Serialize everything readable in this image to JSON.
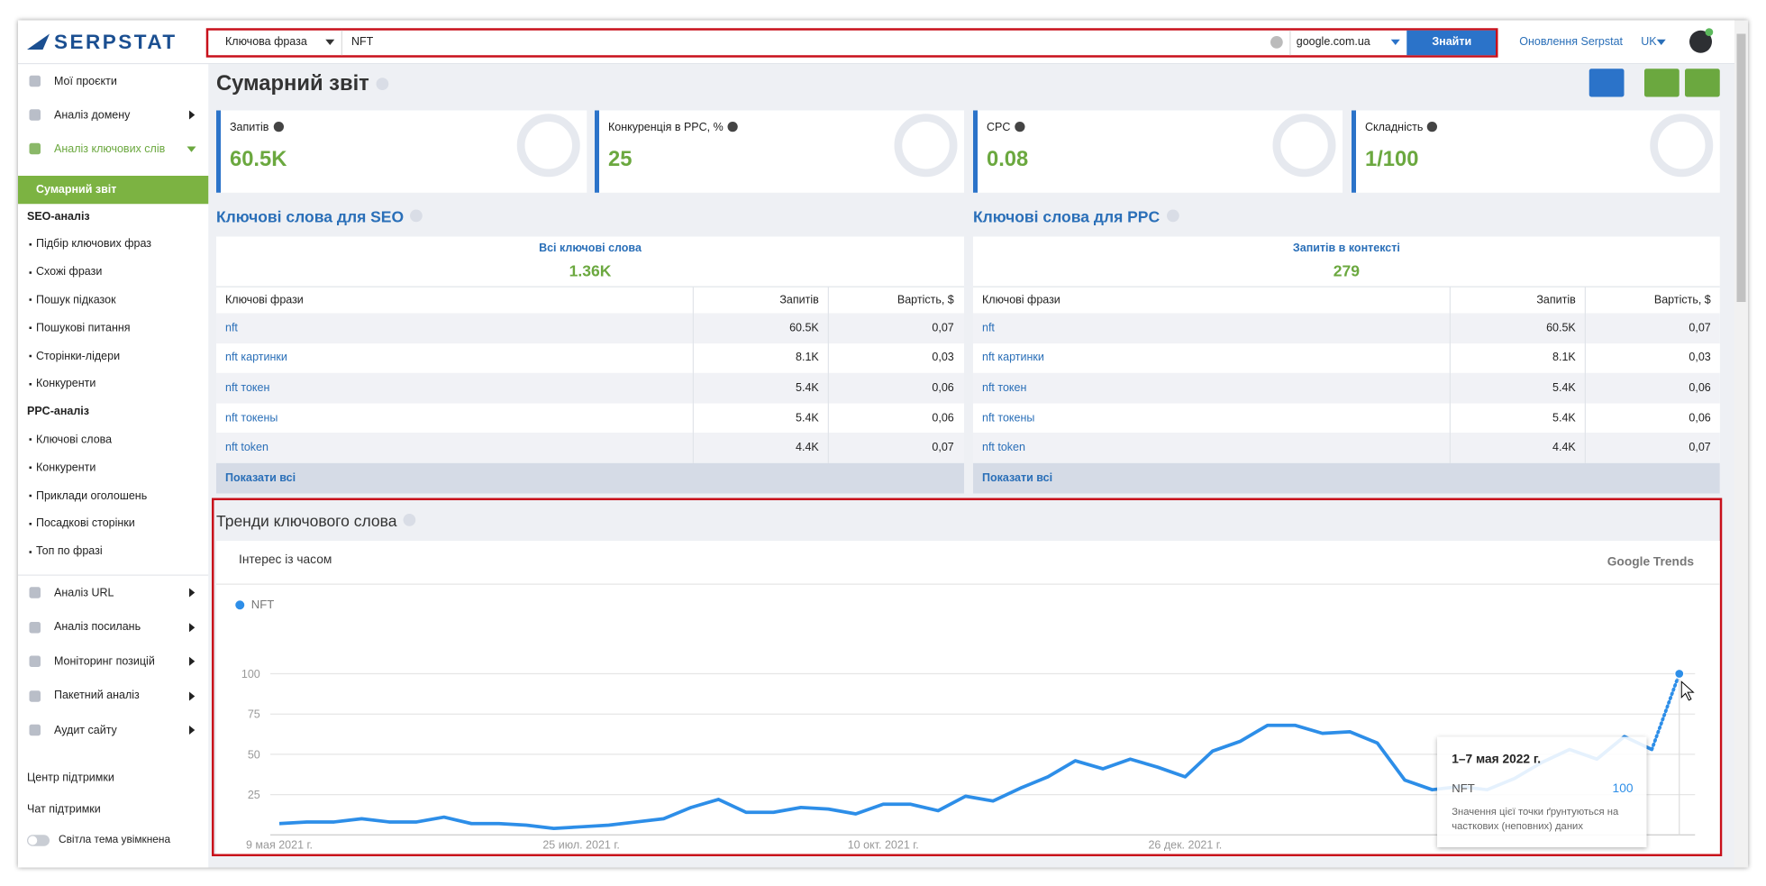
{
  "header": {
    "logo": "SERPSTAT",
    "search_type": "Ключова фраза",
    "query": "NFT",
    "search_engine": "google.com.ua",
    "search_button": "Знайти",
    "updates_link": "Оновлення Serpstat",
    "language": "UK"
  },
  "sidebar": {
    "top_items": [
      "Мої проєкти",
      "Аналіз домену",
      "Аналіз ключових слів"
    ],
    "active_item": "Сумарний звіт",
    "groups": [
      {
        "title": "SEO-аналіз",
        "items": [
          "Підбір ключових фраз",
          "Схожі фрази",
          "Пошук підказок",
          "Пошукові питання",
          "Сторінки-лідери",
          "Конкуренти"
        ]
      },
      {
        "title": "PPC-аналіз",
        "items": [
          "Ключові слова",
          "Конкуренти",
          "Приклади оголошень",
          "Посадкові сторінки",
          "Топ по фразі"
        ]
      }
    ],
    "bottom_items": [
      "Аналіз URL",
      "Аналіз посилань",
      "Моніторинг позицій",
      "Пакетний аналіз",
      "Аудит сайту"
    ],
    "links": [
      "Центр підтримки",
      "Чат підтримки"
    ],
    "theme_toggle": "Світла тема увімкнена"
  },
  "page_title": "Сумарний звіт",
  "metrics": [
    {
      "label": "Запитів",
      "value": "60.5K"
    },
    {
      "label": "Конкуренція в PPC, %",
      "value": "25"
    },
    {
      "label": "CPC",
      "value": "0.08"
    },
    {
      "label": "Складність",
      "value": "1/100"
    }
  ],
  "tables": [
    {
      "title": "Ключові слова для SEO",
      "summary_label": "Всі ключові слова",
      "summary_value": "1.36K",
      "columns": [
        "Ключові фрази",
        "Запитів",
        "Вартість, $"
      ],
      "rows": [
        [
          "nft",
          "60.5K",
          "0,07"
        ],
        [
          "nft картинки",
          "8.1K",
          "0,03"
        ],
        [
          "nft токен",
          "5.4K",
          "0,06"
        ],
        [
          "nft токены",
          "5.4K",
          "0,06"
        ],
        [
          "nft token",
          "4.4K",
          "0,07"
        ]
      ],
      "footer": "Показати всі"
    },
    {
      "title": "Ключові слова для PPC",
      "summary_label": "Запитів в контексті",
      "summary_value": "279",
      "columns": [
        "Ключові фрази",
        "Запитів",
        "Вартість, $"
      ],
      "rows": [
        [
          "nft",
          "60.5K",
          "0,07"
        ],
        [
          "nft картинки",
          "8.1K",
          "0,03"
        ],
        [
          "nft токен",
          "5.4K",
          "0,06"
        ],
        [
          "nft токены",
          "5.4K",
          "0,06"
        ],
        [
          "nft token",
          "4.4K",
          "0,07"
        ]
      ],
      "footer": "Показати всі"
    }
  ],
  "chart_data": {
    "type": "line",
    "title": "Тренди ключового слова",
    "subtitle": "Інтерес із часом",
    "source": "Google Trends",
    "categories": [
      "9 мая 2021 г.",
      null,
      null,
      null,
      null,
      null,
      null,
      null,
      null,
      null,
      null,
      "25 июл. 2021 г.",
      null,
      null,
      null,
      null,
      null,
      null,
      null,
      null,
      null,
      null,
      "10 окт. 2021 г.",
      null,
      null,
      null,
      null,
      null,
      null,
      null,
      null,
      null,
      null,
      "26 дек. 2021 г.",
      null,
      null,
      null,
      null,
      null,
      null,
      null,
      null,
      null,
      null,
      null,
      null,
      null,
      null,
      null,
      null,
      null,
      null
    ],
    "series": [
      {
        "name": "NFT",
        "color": "#2d8ee8",
        "values": [
          7,
          8,
          8,
          10,
          8,
          8,
          11,
          7,
          7,
          6,
          4,
          5,
          6,
          8,
          10,
          17,
          22,
          14,
          14,
          17,
          16,
          13,
          19,
          19,
          15,
          24,
          21,
          29,
          36,
          46,
          41,
          47,
          42,
          36,
          52,
          58,
          68,
          68,
          63,
          64,
          57,
          34,
          28,
          30,
          28,
          35,
          45,
          53,
          47,
          61,
          53,
          100
        ]
      }
    ],
    "ylim": [
      0,
      100
    ],
    "yticks": [
      25,
      50,
      75,
      100
    ],
    "grid": true,
    "tooltip": {
      "title": "1–7 мая 2022 г.",
      "note": "Значення цієї точки ґрунтуються на часткових (неповних) даних"
    }
  }
}
